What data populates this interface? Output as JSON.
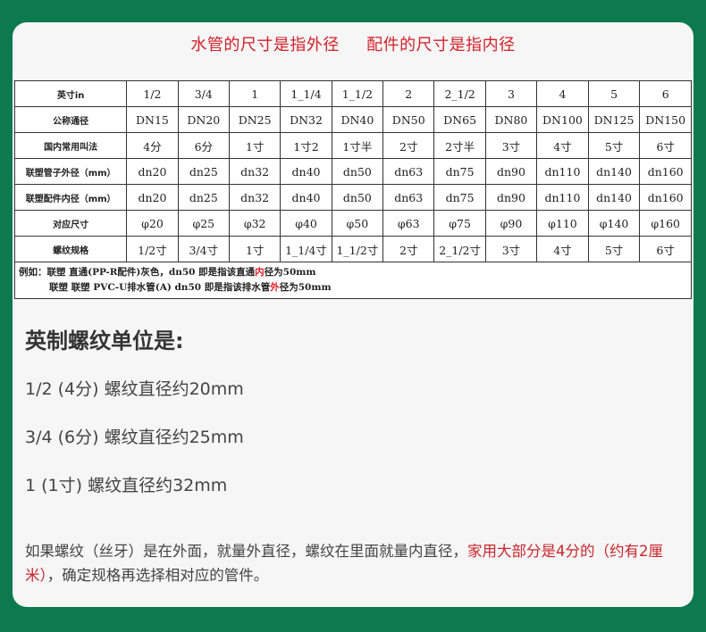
{
  "title": {
    "left": "水管的尺寸是指外径",
    "right": "配件的尺寸是指内径"
  },
  "table": {
    "rows": [
      {
        "header": "英寸in",
        "cells": [
          "1/2",
          "3/4",
          "1",
          "1_1/4",
          "1_1/2",
          "2",
          "2_1/2",
          "3",
          "4",
          "5",
          "6"
        ]
      },
      {
        "header": "公称通径",
        "cells": [
          "DN15",
          "DN20",
          "DN25",
          "DN32",
          "DN40",
          "DN50",
          "DN65",
          "DN80",
          "DN100",
          "DN125",
          "DN150"
        ]
      },
      {
        "header": "国内常用叫法",
        "cells": [
          "4分",
          "6分",
          "1寸",
          "1寸2",
          "1寸半",
          "2寸",
          "2寸半",
          "3寸",
          "4寸",
          "5寸",
          "6寸"
        ]
      },
      {
        "header": "联塑管子外径（mm）",
        "cells": [
          "dn20",
          "dn25",
          "dn32",
          "dn40",
          "dn50",
          "dn63",
          "dn75",
          "dn90",
          "dn110",
          "dn140",
          "dn160"
        ]
      },
      {
        "header": "联塑配件内径（mm）",
        "cells": [
          "dn20",
          "dn25",
          "dn32",
          "dn40",
          "dn50",
          "dn63",
          "dn75",
          "dn90",
          "dn110",
          "dn140",
          "dn160"
        ]
      },
      {
        "header": "对应尺寸",
        "cells": [
          "φ20",
          "φ25",
          "φ32",
          "φ40",
          "φ50",
          "φ63",
          "φ75",
          "φ90",
          "φ110",
          "φ140",
          "φ160"
        ]
      },
      {
        "header": "螺纹规格",
        "cells": [
          "1/2寸",
          "3/4寸",
          "1寸",
          "1_1/4寸",
          "1_1/2寸",
          "2寸",
          "2_1/2寸",
          "3寸",
          "4寸",
          "5寸",
          "6寸"
        ]
      }
    ],
    "note1": {
      "a": "例如：联塑 直通(PP-R配件)灰色，dn50  即是指该直通",
      "red": "内",
      "b": "径为50mm"
    },
    "note2": {
      "a": "联塑 联塑 PVC-U排水管(A) dn50  即是指该排水管",
      "red": "外",
      "b": "径为50mm"
    }
  },
  "subtitle": "英制螺纹单位是:",
  "lines": [
    "1/2 (4分) 螺纹直径约20mm",
    "3/4 (6分) 螺纹直径约25mm",
    "1 (1寸) 螺纹直径约32mm"
  ],
  "paragraph": {
    "a": "如果螺纹（丝牙）是在外面，就量外直径，螺纹在里面就量内直径，",
    "red": "家用大部分是4分的（约有2厘米）",
    "b": "，确定规格再选择相对应的管件。"
  }
}
